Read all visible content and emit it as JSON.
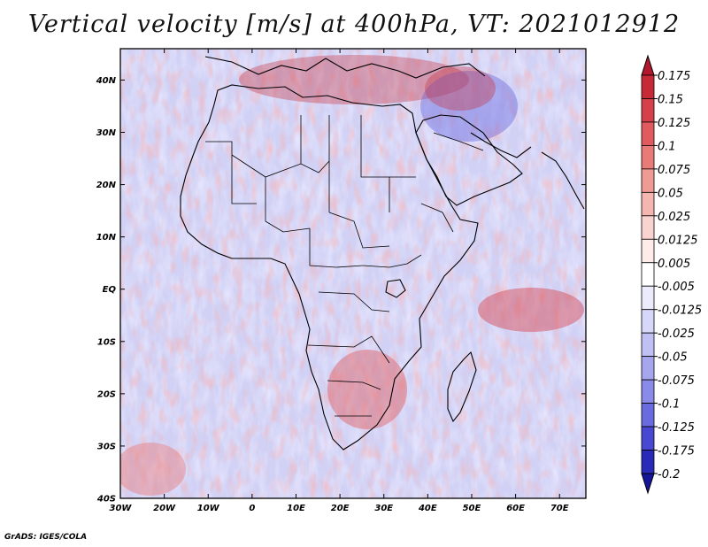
{
  "title": "Vertical velocity [m/s] at 400hPa, VT: 2021012912",
  "credit": "GrADS: IGES/COLA",
  "map": {
    "variable": "Vertical velocity",
    "units": "m/s",
    "level": "400hPa",
    "valid_time": "2021012912",
    "lon_range": [
      -30,
      76
    ],
    "lat_range": [
      -40,
      46
    ],
    "lat_ticks": [
      {
        "value": 40,
        "label": "40N"
      },
      {
        "value": 30,
        "label": "30N"
      },
      {
        "value": 20,
        "label": "20N"
      },
      {
        "value": 10,
        "label": "10N"
      },
      {
        "value": 0,
        "label": "EQ"
      },
      {
        "value": -10,
        "label": "10S"
      },
      {
        "value": -20,
        "label": "20S"
      },
      {
        "value": -30,
        "label": "30S"
      },
      {
        "value": -40,
        "label": "40S"
      }
    ],
    "lon_ticks": [
      {
        "value": -30,
        "label": "30W"
      },
      {
        "value": -20,
        "label": "20W"
      },
      {
        "value": -10,
        "label": "10W"
      },
      {
        "value": 0,
        "label": "0"
      },
      {
        "value": 10,
        "label": "10E"
      },
      {
        "value": 20,
        "label": "20E"
      },
      {
        "value": 30,
        "label": "30E"
      },
      {
        "value": 40,
        "label": "40E"
      },
      {
        "value": 50,
        "label": "50E"
      },
      {
        "value": 60,
        "label": "60E"
      },
      {
        "value": 70,
        "label": "70E"
      }
    ]
  },
  "colorbar": {
    "labels": [
      "0.175",
      "0.15",
      "0.125",
      "0.1",
      "0.075",
      "0.05",
      "0.025",
      "0.0125",
      "0.005",
      "-0.005",
      "-0.0125",
      "-0.025",
      "-0.05",
      "-0.075",
      "-0.1",
      "-0.125",
      "-0.175",
      "-0.2"
    ],
    "colors": [
      "#b2182b",
      "#c62a36",
      "#d6404a",
      "#e05a5e",
      "#e87a78",
      "#f09a94",
      "#f5b6b0",
      "#f9d3cf",
      "#fdecea",
      "#ffffff",
      "#ebebfc",
      "#d7d7fa",
      "#c0c0f5",
      "#a6a6ef",
      "#8a8ae8",
      "#6b6be0",
      "#4848d2",
      "#2a2ab8",
      "#15159a"
    ]
  }
}
